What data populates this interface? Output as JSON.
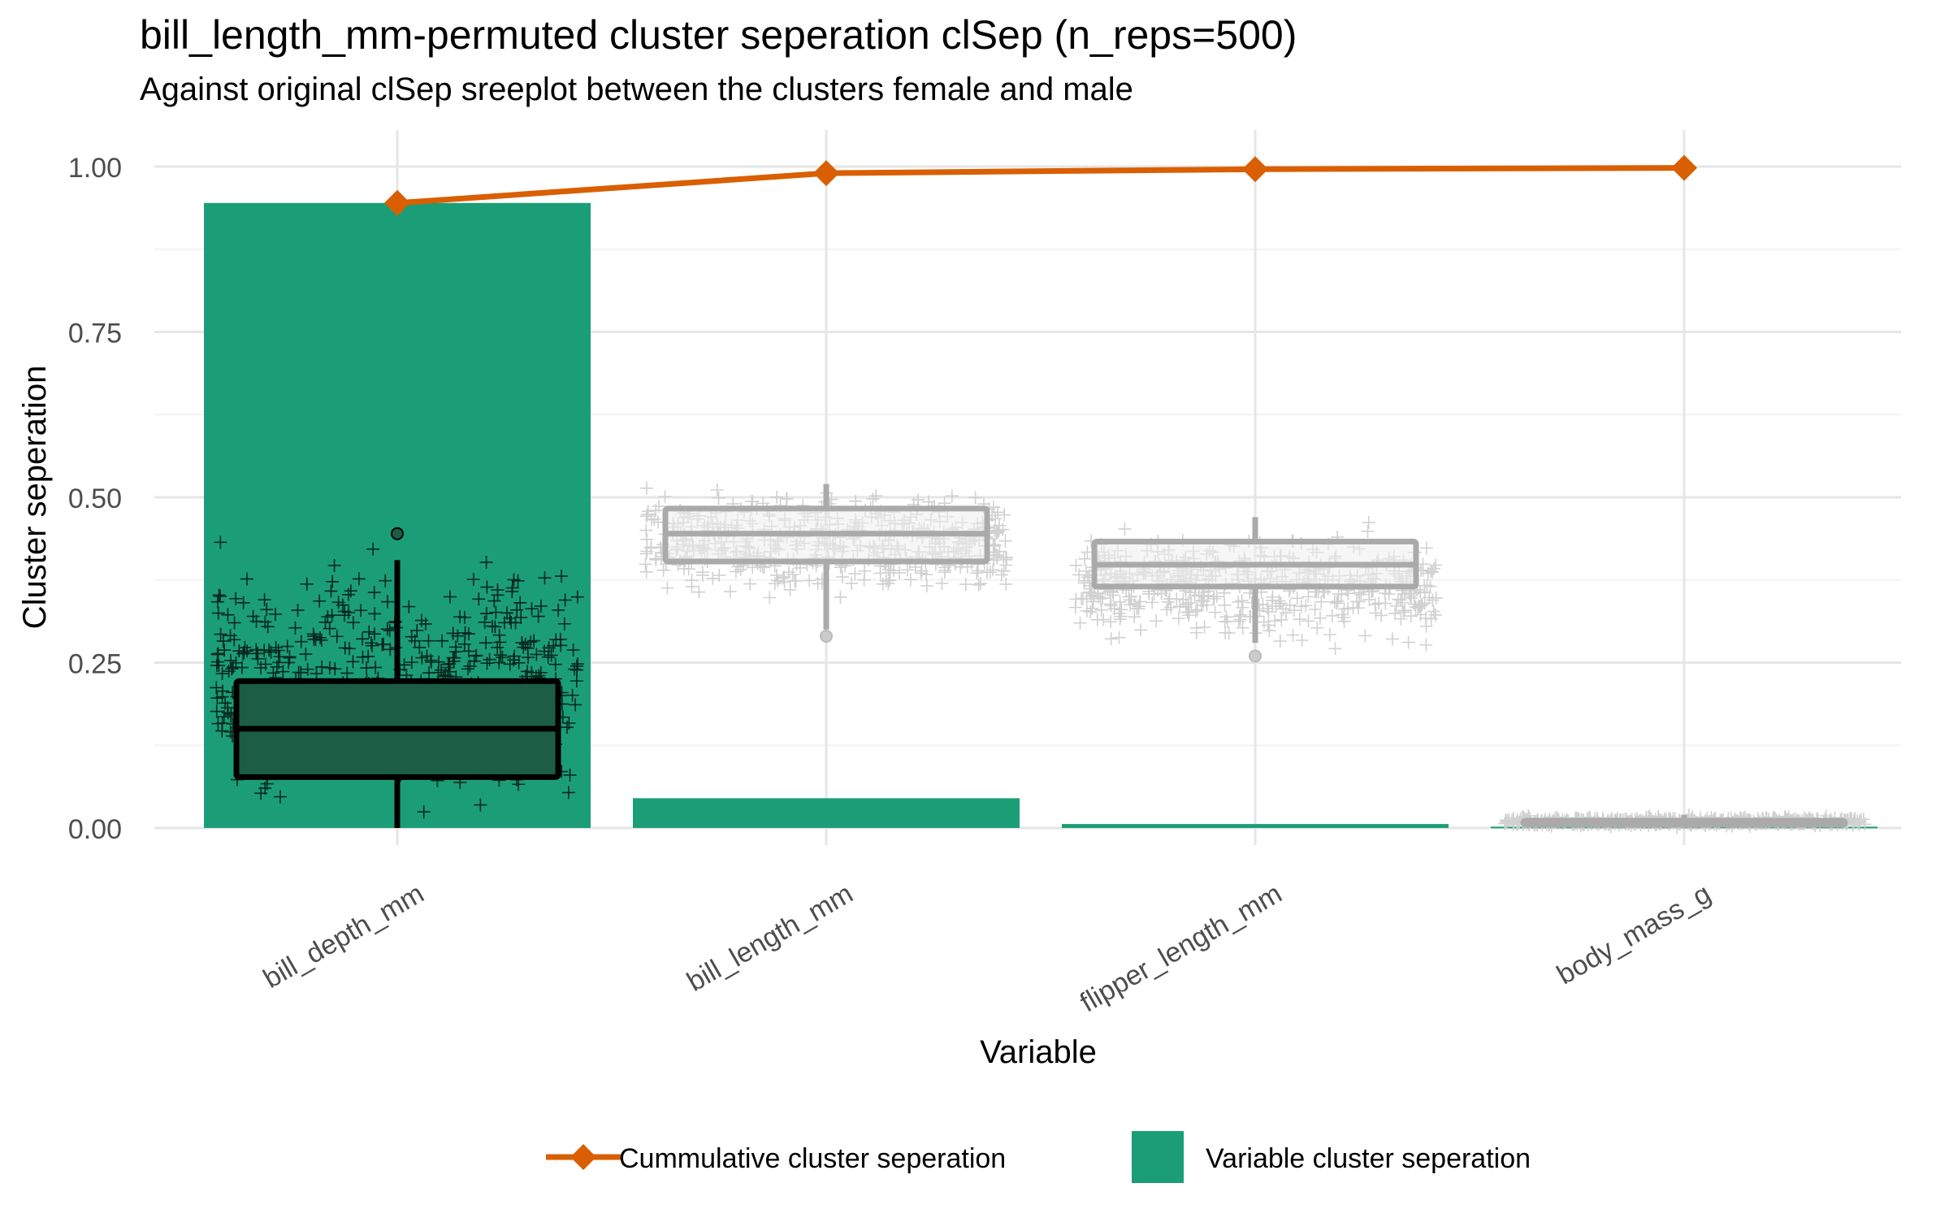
{
  "chart_data": {
    "type": "bar",
    "title": "bill_length_mm-permuted cluster seperation clSep (n_reps=500)",
    "subtitle": "Against original clSep sreeplot between the clusters female and male",
    "xlabel": "Variable",
    "ylabel": "Cluster seperation",
    "ylim": [
      0,
      1.05
    ],
    "y_ticks": [
      "0.00",
      "0.25",
      "0.50",
      "0.75",
      "1.00"
    ],
    "y_tick_values": [
      0,
      0.25,
      0.5,
      0.75,
      1.0
    ],
    "categories": [
      "bill_depth_mm",
      "bill_length_mm",
      "flipper_length_mm",
      "body_mass_g"
    ],
    "grid": true,
    "legend_position": "bottom",
    "series": [
      {
        "name": "Variable cluster seperation",
        "kind": "bar",
        "color": "#1B9E77",
        "values": [
          0.945,
          0.045,
          0.006,
          0.002
        ]
      },
      {
        "name": "Cummulative cluster seperation",
        "kind": "line",
        "color": "#D95F02",
        "values": [
          0.945,
          0.99,
          0.996,
          0.998
        ]
      }
    ],
    "permutation_boxplots": [
      {
        "category": "bill_depth_mm",
        "min": 0.0,
        "q1": 0.077,
        "median": 0.15,
        "q3": 0.222,
        "max": 0.405,
        "outliers": [
          0.445
        ],
        "jitter_min": 0.0,
        "jitter_max": 0.45,
        "color": "#000000",
        "fill": "#1B5E45"
      },
      {
        "category": "bill_length_mm",
        "min": 0.3,
        "q1": 0.403,
        "median": 0.445,
        "q3": 0.483,
        "max": 0.52,
        "outliers": [
          0.29
        ],
        "jitter_min": 0.33,
        "jitter_max": 0.53,
        "color": "#AAAAAA",
        "fill": "#EFEFEF"
      },
      {
        "category": "flipper_length_mm",
        "min": 0.28,
        "q1": 0.365,
        "median": 0.398,
        "q3": 0.433,
        "max": 0.47,
        "outliers": [
          0.26
        ],
        "jitter_min": 0.26,
        "jitter_max": 0.47,
        "color": "#AAAAAA",
        "fill": "#EFEFEF"
      },
      {
        "category": "body_mass_g",
        "min": 0.0,
        "q1": 0.005,
        "median": 0.008,
        "q3": 0.011,
        "max": 0.02,
        "outliers": [],
        "jitter_min": 0.0,
        "jitter_max": 0.02,
        "color": "#AAAAAA",
        "fill": "#EFEFEF"
      }
    ],
    "n_reps": 500
  }
}
